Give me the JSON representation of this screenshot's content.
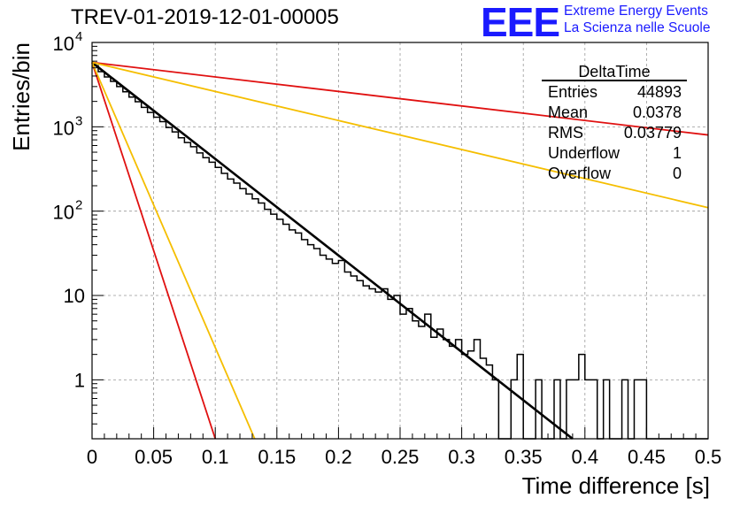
{
  "header": {
    "title": "TREV-01-2019-12-01-00005",
    "logo_text": "EEE",
    "logo_line1": "Extreme Energy Events",
    "logo_line2": "La Scienza nelle Scuole"
  },
  "chart_data": {
    "type": "line",
    "xlabel": "Time difference [s]",
    "ylabel": "Entries/bin",
    "xlim": [
      0,
      0.5
    ],
    "ylim": [
      0.2,
      10000
    ],
    "yscale": "log",
    "grid": true,
    "x_ticks": [
      {
        "v": 0,
        "label": "0"
      },
      {
        "v": 0.05,
        "label": "0.05"
      },
      {
        "v": 0.1,
        "label": "0.1"
      },
      {
        "v": 0.15,
        "label": "0.15"
      },
      {
        "v": 0.2,
        "label": "0.2"
      },
      {
        "v": 0.25,
        "label": "0.25"
      },
      {
        "v": 0.3,
        "label": "0.3"
      },
      {
        "v": 0.35,
        "label": "0.35"
      },
      {
        "v": 0.4,
        "label": "0.4"
      },
      {
        "v": 0.45,
        "label": "0.45"
      },
      {
        "v": 0.5,
        "label": "0.5"
      }
    ],
    "y_ticks": [
      {
        "v": 1,
        "label": "1"
      },
      {
        "v": 10,
        "label": "10"
      },
      {
        "v": 100,
        "label": "10",
        "exp": "2"
      },
      {
        "v": 1000,
        "label": "10",
        "exp": "3"
      },
      {
        "v": 10000,
        "label": "10",
        "exp": "4"
      }
    ],
    "stats_box": {
      "name": "DeltaTime",
      "rows": [
        {
          "label": "Entries",
          "value": "44893"
        },
        {
          "label": "Mean",
          "value": "0.0378"
        },
        {
          "label": "RMS",
          "value": "0.03779"
        },
        {
          "label": "Underflow",
          "value": "1"
        },
        {
          "label": "Overflow",
          "value": "0"
        }
      ]
    },
    "histogram": {
      "bin_width": 0.005,
      "values": [
        5300,
        4500,
        3900,
        3450,
        3000,
        2600,
        2250,
        1980,
        1700,
        1480,
        1300,
        1150,
        980,
        870,
        740,
        650,
        580,
        490,
        430,
        380,
        330,
        280,
        240,
        215,
        185,
        160,
        140,
        125,
        105,
        92,
        80,
        70,
        60,
        55,
        46,
        40,
        36,
        30,
        27,
        24,
        26,
        19,
        17,
        15,
        13,
        12,
        11,
        12,
        9,
        10,
        6,
        7,
        5,
        4.3,
        6,
        3.2,
        4,
        3,
        2.5,
        3,
        2,
        2.2,
        3,
        1.8,
        1.5,
        1,
        0,
        0,
        1,
        2,
        0,
        0,
        1,
        0,
        0,
        1,
        0,
        1,
        1,
        2,
        1,
        1,
        0,
        1,
        0,
        0,
        1,
        0,
        1,
        1,
        0,
        0,
        0,
        0,
        0,
        0,
        0,
        0,
        0,
        0
      ]
    },
    "series": [
      {
        "values": [
          [
            0,
            5800
          ],
          [
            0.39,
            0.2
          ]
        ],
        "color": "#000000"
      },
      {
        "values": [
          [
            0,
            5800
          ],
          [
            0.5,
            800
          ]
        ],
        "color": "#e01010"
      },
      {
        "values": [
          [
            0,
            5800
          ],
          [
            0.5,
            110
          ]
        ],
        "color": "#f5be00"
      },
      {
        "values": [
          [
            0,
            5800
          ],
          [
            0.1,
            0.2
          ]
        ],
        "color": "#e01010"
      },
      {
        "values": [
          [
            0,
            5800
          ],
          [
            0.132,
            0.2
          ]
        ],
        "color": "#f5be00"
      }
    ]
  }
}
